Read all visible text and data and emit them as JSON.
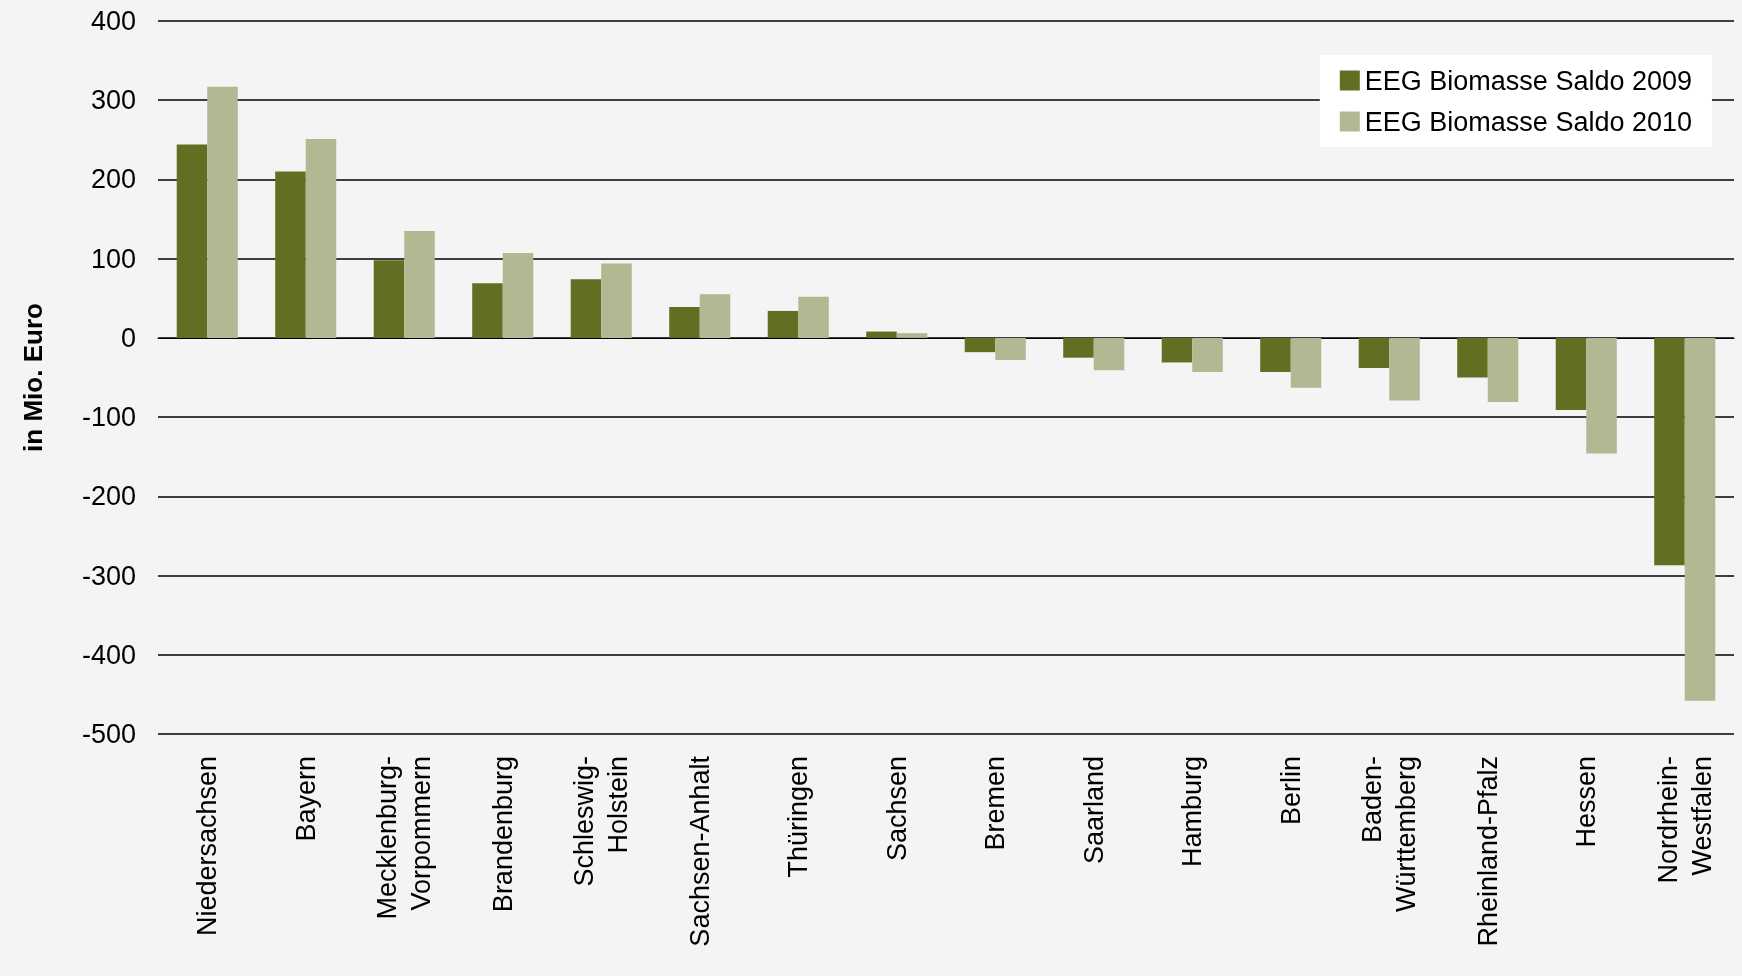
{
  "chart_data": {
    "type": "bar",
    "ylabel": "in Mio. Euro",
    "categories": [
      "Niedersachsen",
      "Bayern",
      "Mecklenburg-\nVorpommern",
      "Brandenburg",
      "Schleswig-\nHolstein",
      "Sachsen-Anhalt",
      "Thüringen",
      "Sachsen",
      "Bremen",
      "Saarland",
      "Hamburg",
      "Berlin",
      "Baden-\nWürttemberg",
      "Rheinland-Pfalz",
      "Hessen",
      "Nordrhein-\nWestfalen"
    ],
    "series": [
      {
        "name": "EEG Biomasse Saldo 2009",
        "color": "#636e22",
        "values": [
          244,
          210,
          98,
          69,
          74,
          39,
          34,
          8,
          -18,
          -25,
          -31,
          -43,
          -38,
          -50,
          -91,
          -287
        ]
      },
      {
        "name": "EEG Biomasse Saldo 2010",
        "color": "#b1b892",
        "values": [
          317,
          251,
          135,
          107,
          94,
          55,
          52,
          6,
          -28,
          -41,
          -43,
          -63,
          -79,
          -81,
          -146,
          -458
        ]
      }
    ],
    "ylim": [
      -500,
      400
    ],
    "yticks": [
      -500,
      -400,
      -300,
      -200,
      -100,
      0,
      100,
      200,
      300,
      400
    ],
    "grid": "y",
    "legend": "top right"
  }
}
